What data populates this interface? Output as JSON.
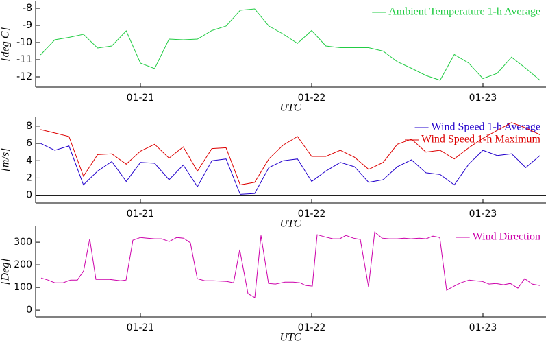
{
  "chart_data": [
    {
      "type": "line",
      "ylabel": "[deg C]",
      "xlabel": "UTC",
      "legend": "upper right",
      "x": [
        20.417,
        20.5,
        20.583,
        20.667,
        20.75,
        20.833,
        20.917,
        21.0,
        21.083,
        21.167,
        21.25,
        21.333,
        21.417,
        21.5,
        21.583,
        21.667,
        21.75,
        21.833,
        21.917,
        22.0,
        22.083,
        22.167,
        22.25,
        22.333,
        22.417,
        22.5,
        22.583,
        22.667,
        22.75,
        22.833,
        22.917,
        23.0,
        23.083,
        23.167,
        23.25,
        23.333
      ],
      "series": [
        {
          "name": "Ambient Temperature 1-h Average",
          "color": "#22cc44",
          "values": [
            -10.72,
            -9.84,
            -9.7,
            -9.52,
            -10.32,
            -10.2,
            -9.32,
            -11.2,
            -11.52,
            -9.8,
            -9.84,
            -9.8,
            -9.3,
            -9.04,
            -8.12,
            -8.04,
            -9.04,
            -9.5,
            -10.05,
            -9.3,
            -10.2,
            -10.3,
            -10.3,
            -10.3,
            -10.5,
            -11.12,
            -11.5,
            -11.92,
            -12.2,
            -10.7,
            -11.2,
            -12.1,
            -11.8,
            -10.85,
            -11.5,
            -12.2
          ]
        }
      ],
      "xlim": [
        20.388,
        23.368
      ],
      "xticks": [
        {
          "value": 21,
          "label": "01-21"
        },
        {
          "value": 22,
          "label": "01-22"
        },
        {
          "value": 23,
          "label": "01-23"
        }
      ],
      "ylim": [
        -12.6,
        -7.6
      ],
      "yticks": [
        -12,
        -11,
        -10,
        -9,
        -8
      ]
    },
    {
      "type": "line",
      "ylabel": "[m/s]",
      "xlabel": "UTC",
      "legend": "upper right",
      "axhline": 0,
      "x": [
        20.417,
        20.5,
        20.583,
        20.667,
        20.75,
        20.833,
        20.917,
        21.0,
        21.083,
        21.167,
        21.25,
        21.333,
        21.417,
        21.5,
        21.583,
        21.667,
        21.75,
        21.833,
        21.917,
        22.0,
        22.083,
        22.167,
        22.25,
        22.333,
        22.417,
        22.5,
        22.583,
        22.667,
        22.75,
        22.833,
        22.917,
        23.0,
        23.083,
        23.167,
        23.25,
        23.333
      ],
      "series": [
        {
          "name": "Wind Speed 1-h Average",
          "color": "#2200cc",
          "values": [
            6.0,
            5.2,
            5.7,
            1.2,
            2.8,
            3.9,
            1.6,
            3.8,
            3.7,
            1.8,
            3.5,
            1.0,
            4.0,
            4.2,
            0.1,
            0.2,
            3.2,
            4.0,
            4.2,
            1.6,
            2.8,
            3.8,
            3.3,
            1.5,
            1.8,
            3.3,
            4.1,
            2.6,
            2.4,
            1.2,
            3.6,
            5.2,
            4.6,
            4.8,
            3.2,
            4.6
          ]
        },
        {
          "name": "Wind Speed 1-h Maximum",
          "color": "#dd0000",
          "values": [
            7.6,
            7.2,
            6.8,
            2.2,
            4.7,
            4.8,
            3.6,
            5.1,
            5.9,
            4.3,
            5.6,
            2.8,
            5.4,
            5.5,
            1.2,
            1.5,
            4.2,
            5.8,
            6.8,
            4.5,
            4.5,
            5.2,
            4.4,
            3.0,
            3.8,
            5.9,
            6.5,
            5.0,
            5.2,
            4.2,
            5.5,
            6.6,
            7.5,
            8.4,
            7.8,
            7.0
          ]
        }
      ],
      "xlim": [
        20.388,
        23.368
      ],
      "xticks": [
        {
          "value": 21,
          "label": "01-21"
        },
        {
          "value": 22,
          "label": "01-22"
        },
        {
          "value": 23,
          "label": "01-23"
        }
      ],
      "ylim": [
        -0.9,
        9.1
      ],
      "yticks": [
        0,
        2,
        4,
        6,
        8
      ]
    },
    {
      "type": "line",
      "ylabel": "[Deg]",
      "xlabel": "UTC",
      "legend": "upper right",
      "x": [
        20.42,
        20.46,
        20.5,
        20.548,
        20.592,
        20.632,
        20.668,
        20.704,
        20.74,
        20.82,
        20.884,
        20.916,
        20.956,
        21.0,
        21.04,
        21.084,
        21.124,
        21.168,
        21.212,
        21.252,
        21.292,
        21.332,
        21.376,
        21.424,
        21.504,
        21.544,
        21.58,
        21.628,
        21.668,
        21.704,
        21.748,
        21.788,
        21.844,
        21.892,
        21.932,
        21.964,
        22.004,
        22.032,
        22.076,
        22.124,
        22.164,
        22.2,
        22.244,
        22.284,
        22.332,
        22.368,
        22.412,
        22.452,
        22.5,
        22.54,
        22.58,
        22.628,
        22.668,
        22.708,
        22.748,
        22.788,
        22.832,
        22.872,
        22.92,
        22.952,
        22.996,
        23.036,
        23.076,
        23.12,
        23.16,
        23.204,
        23.244,
        23.288,
        23.332
      ],
      "series": [
        {
          "name": "Wind Direction",
          "color": "#cc00aa",
          "values": [
            142,
            133,
            121,
            121,
            133,
            133,
            173,
            315,
            136,
            136,
            130,
            133,
            309,
            321,
            318,
            315,
            315,
            303,
            321,
            318,
            297,
            139,
            130,
            130,
            127,
            121,
            267,
            73,
            55,
            330,
            118,
            115,
            124,
            124,
            121,
            109,
            106,
            333,
            324,
            315,
            315,
            330,
            318,
            312,
            103,
            345,
            318,
            315,
            315,
            318,
            315,
            318,
            315,
            327,
            321,
            88,
            106,
            121,
            133,
            130,
            127,
            115,
            118,
            112,
            118,
            97,
            139,
            115,
            109
          ]
        }
      ],
      "xlim": [
        20.388,
        23.368
      ],
      "xticks": [
        {
          "value": 21,
          "label": "01-21"
        },
        {
          "value": 22,
          "label": "01-22"
        },
        {
          "value": 23,
          "label": "01-23"
        }
      ],
      "ylim": [
        -30,
        370
      ],
      "yticks": [
        0,
        100,
        200,
        300
      ]
    }
  ]
}
